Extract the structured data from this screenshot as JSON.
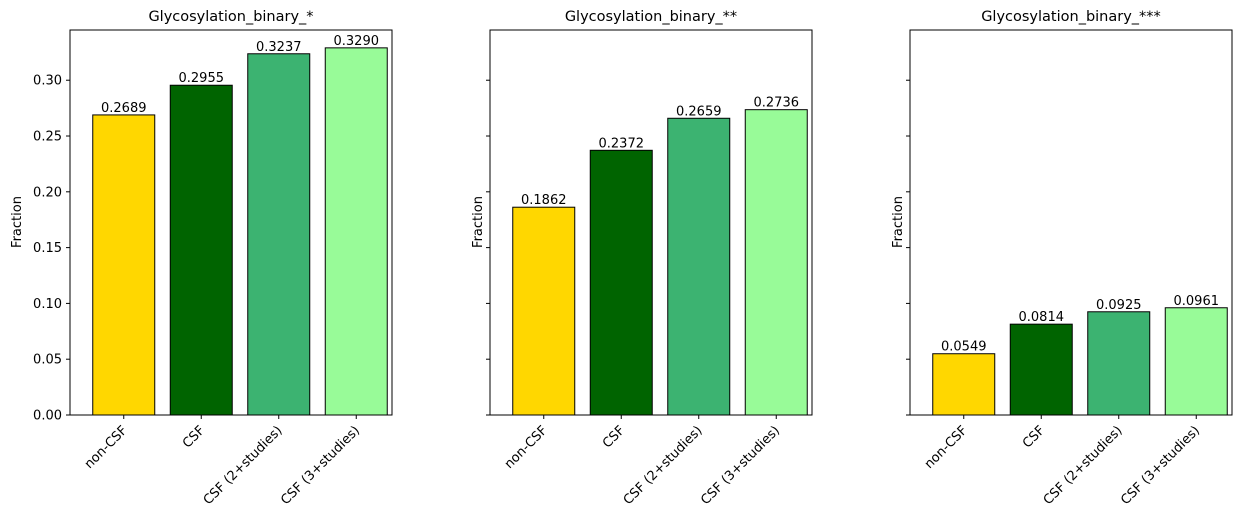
{
  "chart_data": [
    {
      "type": "bar",
      "title": "Glycosylation_binary_*",
      "ylabel": "Fraction",
      "categories": [
        "non-CSF",
        "CSF",
        "CSF (2+studies)",
        "CSF (3+studies)"
      ],
      "values": [
        0.2689,
        0.2955,
        0.3237,
        0.329
      ],
      "value_labels": [
        "0.2689",
        "0.2955",
        "0.3237",
        "0.3290"
      ],
      "colors": [
        "#ffd700",
        "#006400",
        "#3cb371",
        "#98fb98"
      ],
      "ylim": [
        0,
        0.345
      ],
      "yticks": [
        0.0,
        0.05,
        0.1,
        0.15,
        0.2,
        0.25,
        0.3
      ],
      "ytick_labels": [
        "0.00",
        "0.05",
        "0.10",
        "0.15",
        "0.20",
        "0.25",
        "0.30"
      ],
      "grid": false
    },
    {
      "type": "bar",
      "title": "Glycosylation_binary_**",
      "ylabel": "Fraction",
      "categories": [
        "non-CSF",
        "CSF",
        "CSF (2+studies)",
        "CSF (3+studies)"
      ],
      "values": [
        0.1862,
        0.2372,
        0.2659,
        0.2736
      ],
      "value_labels": [
        "0.1862",
        "0.2372",
        "0.2659",
        "0.2736"
      ],
      "colors": [
        "#ffd700",
        "#006400",
        "#3cb371",
        "#98fb98"
      ],
      "ylim": [
        0,
        0.345
      ],
      "yticks": [
        0.0,
        0.05,
        0.1,
        0.15,
        0.2,
        0.25,
        0.3
      ],
      "ytick_labels": [],
      "grid": false
    },
    {
      "type": "bar",
      "title": "Glycosylation_binary_***",
      "ylabel": "Fraction",
      "categories": [
        "non-CSF",
        "CSF",
        "CSF (2+studies)",
        "CSF (3+studies)"
      ],
      "values": [
        0.0549,
        0.0814,
        0.0925,
        0.0961
      ],
      "value_labels": [
        "0.0549",
        "0.0814",
        "0.0925",
        "0.0961"
      ],
      "colors": [
        "#ffd700",
        "#006400",
        "#3cb371",
        "#98fb98"
      ],
      "ylim": [
        0,
        0.345
      ],
      "yticks": [
        0.0,
        0.05,
        0.1,
        0.15,
        0.2,
        0.25,
        0.3
      ],
      "ytick_labels": [],
      "grid": false
    }
  ]
}
